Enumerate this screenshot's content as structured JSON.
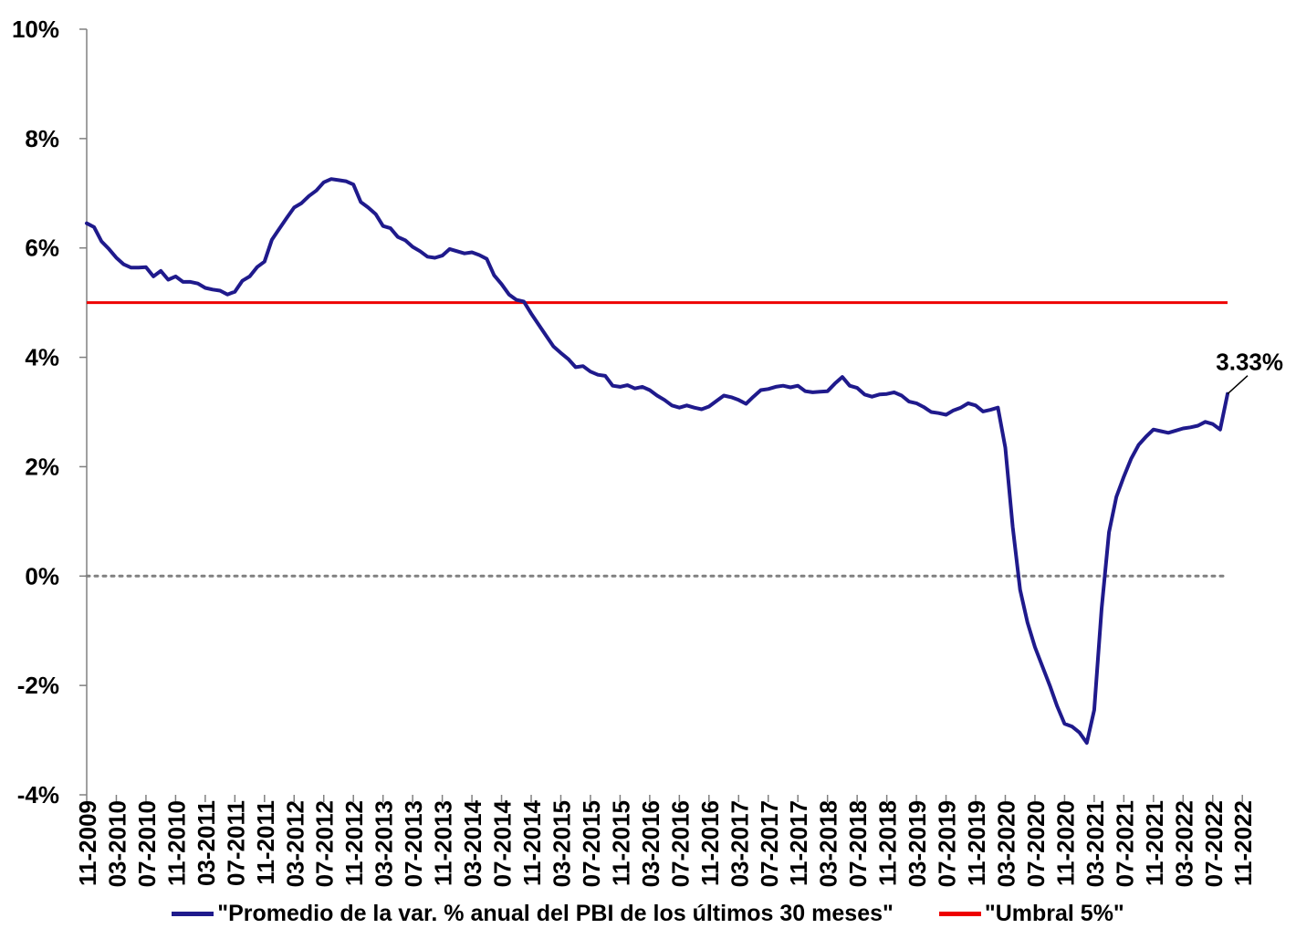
{
  "chart_data": {
    "type": "line",
    "title": "",
    "xlabel": "",
    "ylabel": "",
    "ylim": [
      -4,
      10
    ],
    "yticks": [
      "10%",
      "8%",
      "6%",
      "4%",
      "2%",
      "0%",
      "-2%",
      "-4%"
    ],
    "ytick_values": [
      10,
      8,
      6,
      4,
      2,
      0,
      -2,
      -4
    ],
    "xticks": [
      "11-2009",
      "03-2010",
      "07-2010",
      "11-2010",
      "03-2011",
      "07-2011",
      "11-2011",
      "03-2012",
      "07-2012",
      "11-2012",
      "03-2013",
      "07-2013",
      "11-2013",
      "03-2014",
      "07-2014",
      "11-2014",
      "03-2015",
      "07-2015",
      "11-2015",
      "03-2016",
      "07-2016",
      "11-2016",
      "03-2017",
      "07-2017",
      "11-2017",
      "03-2018",
      "07-2018",
      "11-2018",
      "03-2019",
      "07-2019",
      "11-2019",
      "03-2020",
      "07-2020",
      "11-2020",
      "03-2021",
      "07-2021",
      "11-2021",
      "03-2022",
      "07-2022",
      "11-2022"
    ],
    "zero_line": {
      "value": 0,
      "style": "dotted",
      "color": "#808080"
    },
    "series": [
      {
        "name": "\"Promedio de la var. % anual del PBI de los últimos 30 meses\"",
        "color": "#1f1a8c",
        "values": [
          6.45,
          6.38,
          6.12,
          5.98,
          5.82,
          5.7,
          5.64,
          5.64,
          5.65,
          5.48,
          5.58,
          5.42,
          5.48,
          5.38,
          5.38,
          5.35,
          5.27,
          5.24,
          5.22,
          5.15,
          5.2,
          5.4,
          5.48,
          5.65,
          5.75,
          6.15,
          6.35,
          6.55,
          6.74,
          6.82,
          6.95,
          7.05,
          7.2,
          7.26,
          7.24,
          7.22,
          7.16,
          6.84,
          6.74,
          6.62,
          6.4,
          6.36,
          6.2,
          6.14,
          6.02,
          5.94,
          5.84,
          5.82,
          5.86,
          5.98,
          5.94,
          5.9,
          5.92,
          5.87,
          5.8,
          5.5,
          5.34,
          5.15,
          5.05,
          5.02,
          4.8,
          4.6,
          4.4,
          4.2,
          4.08,
          3.97,
          3.82,
          3.84,
          3.74,
          3.68,
          3.66,
          3.48,
          3.46,
          3.49,
          3.43,
          3.46,
          3.4,
          3.3,
          3.22,
          3.12,
          3.08,
          3.12,
          3.08,
          3.05,
          3.1,
          3.2,
          3.3,
          3.27,
          3.22,
          3.15,
          3.28,
          3.4,
          3.42,
          3.46,
          3.48,
          3.45,
          3.48,
          3.38,
          3.36,
          3.37,
          3.38,
          3.52,
          3.64,
          3.48,
          3.44,
          3.32,
          3.28,
          3.32,
          3.33,
          3.36,
          3.3,
          3.19,
          3.16,
          3.09,
          3.0,
          2.98,
          2.95,
          3.03,
          3.08,
          3.16,
          3.12,
          3.01,
          3.04,
          3.08,
          2.35,
          0.9,
          -0.25,
          -0.85,
          -1.3,
          -1.65,
          -2.0,
          -2.38,
          -2.7,
          -2.75,
          -2.86,
          -3.05,
          -2.45,
          -0.6,
          0.8,
          1.45,
          1.82,
          2.15,
          2.4,
          2.55,
          2.68,
          2.65,
          2.62,
          2.66,
          2.7,
          2.72,
          2.75,
          2.82,
          2.78,
          2.68,
          3.33
        ]
      },
      {
        "name": "\"Umbral 5%\"",
        "color": "#ee0000",
        "values_constant": 5
      }
    ],
    "annotations": [
      {
        "text": "3.33%",
        "x": "11-2022",
        "y": 3.33
      }
    ],
    "legend_position": "bottom"
  }
}
